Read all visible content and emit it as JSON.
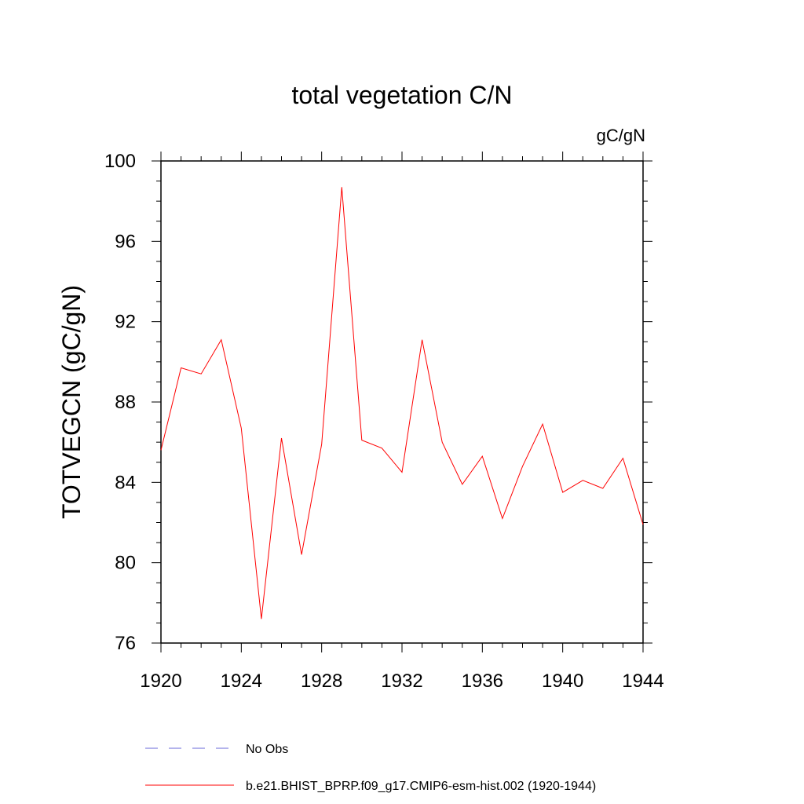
{
  "chart_data": {
    "type": "line",
    "title": "total vegetation C/N",
    "units": "gC/gN",
    "xlabel": "",
    "ylabel": "TOTVEGCN  (gC/gN)",
    "xlim": [
      1920,
      1944
    ],
    "ylim": [
      76,
      100
    ],
    "xticks": [
      1920,
      1924,
      1928,
      1932,
      1936,
      1940,
      1944
    ],
    "yticks": [
      76,
      80,
      84,
      88,
      92,
      96,
      100
    ],
    "series": [
      {
        "name": "b.e21.BHIST_BPRP.f09_g17.CMIP6-esm-hist.002 (1920-1944)",
        "color": "#ff0000",
        "style": "solid",
        "x": [
          1920,
          1921,
          1922,
          1923,
          1924,
          1925,
          1926,
          1927,
          1928,
          1929,
          1930,
          1931,
          1932,
          1933,
          1934,
          1935,
          1936,
          1937,
          1938,
          1939,
          1940,
          1941,
          1942,
          1943,
          1944
        ],
        "values": [
          85.6,
          89.7,
          89.4,
          91.1,
          86.7,
          77.2,
          86.2,
          80.4,
          85.9,
          98.7,
          86.1,
          85.7,
          84.5,
          91.1,
          86.0,
          83.9,
          85.3,
          82.2,
          84.8,
          86.9,
          83.5,
          84.1,
          83.7,
          85.2,
          81.9
        ]
      }
    ],
    "legend": [
      {
        "label": "No Obs",
        "color": "#6a6ad8",
        "style": "dashed"
      },
      {
        "label": "b.e21.BHIST_BPRP.f09_g17.CMIP6-esm-hist.002 (1920-1944)",
        "color": "#ff0000",
        "style": "solid"
      }
    ]
  }
}
